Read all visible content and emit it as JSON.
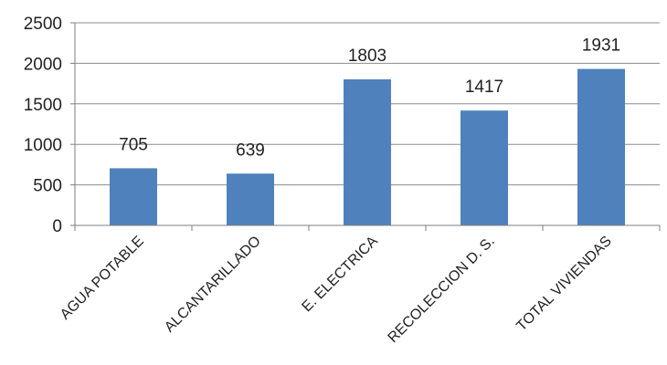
{
  "chart_data": {
    "type": "bar",
    "categories": [
      "AGUA POTABLE",
      "ALCANTARILLADO",
      "E. ELECTRICA",
      "RECOLECCION D. S.",
      "TOTAL VIVIENDAS"
    ],
    "values": [
      705,
      639,
      1803,
      1417,
      1931
    ],
    "data_labels": [
      "705",
      "639",
      "1803",
      "1417",
      "1931"
    ],
    "y_ticks": [
      0,
      500,
      1000,
      1500,
      2000,
      2500
    ],
    "y_tick_labels": [
      "0",
      "500",
      "1000",
      "1500",
      "2000",
      "2500"
    ],
    "ylim": [
      0,
      2500
    ],
    "title": "",
    "xlabel": "",
    "ylabel": "",
    "grid": true,
    "legend": "none",
    "bar_color": "#4f81bd",
    "grid_color": "#8c8c8c",
    "axis_color": "#7f7f7f"
  }
}
